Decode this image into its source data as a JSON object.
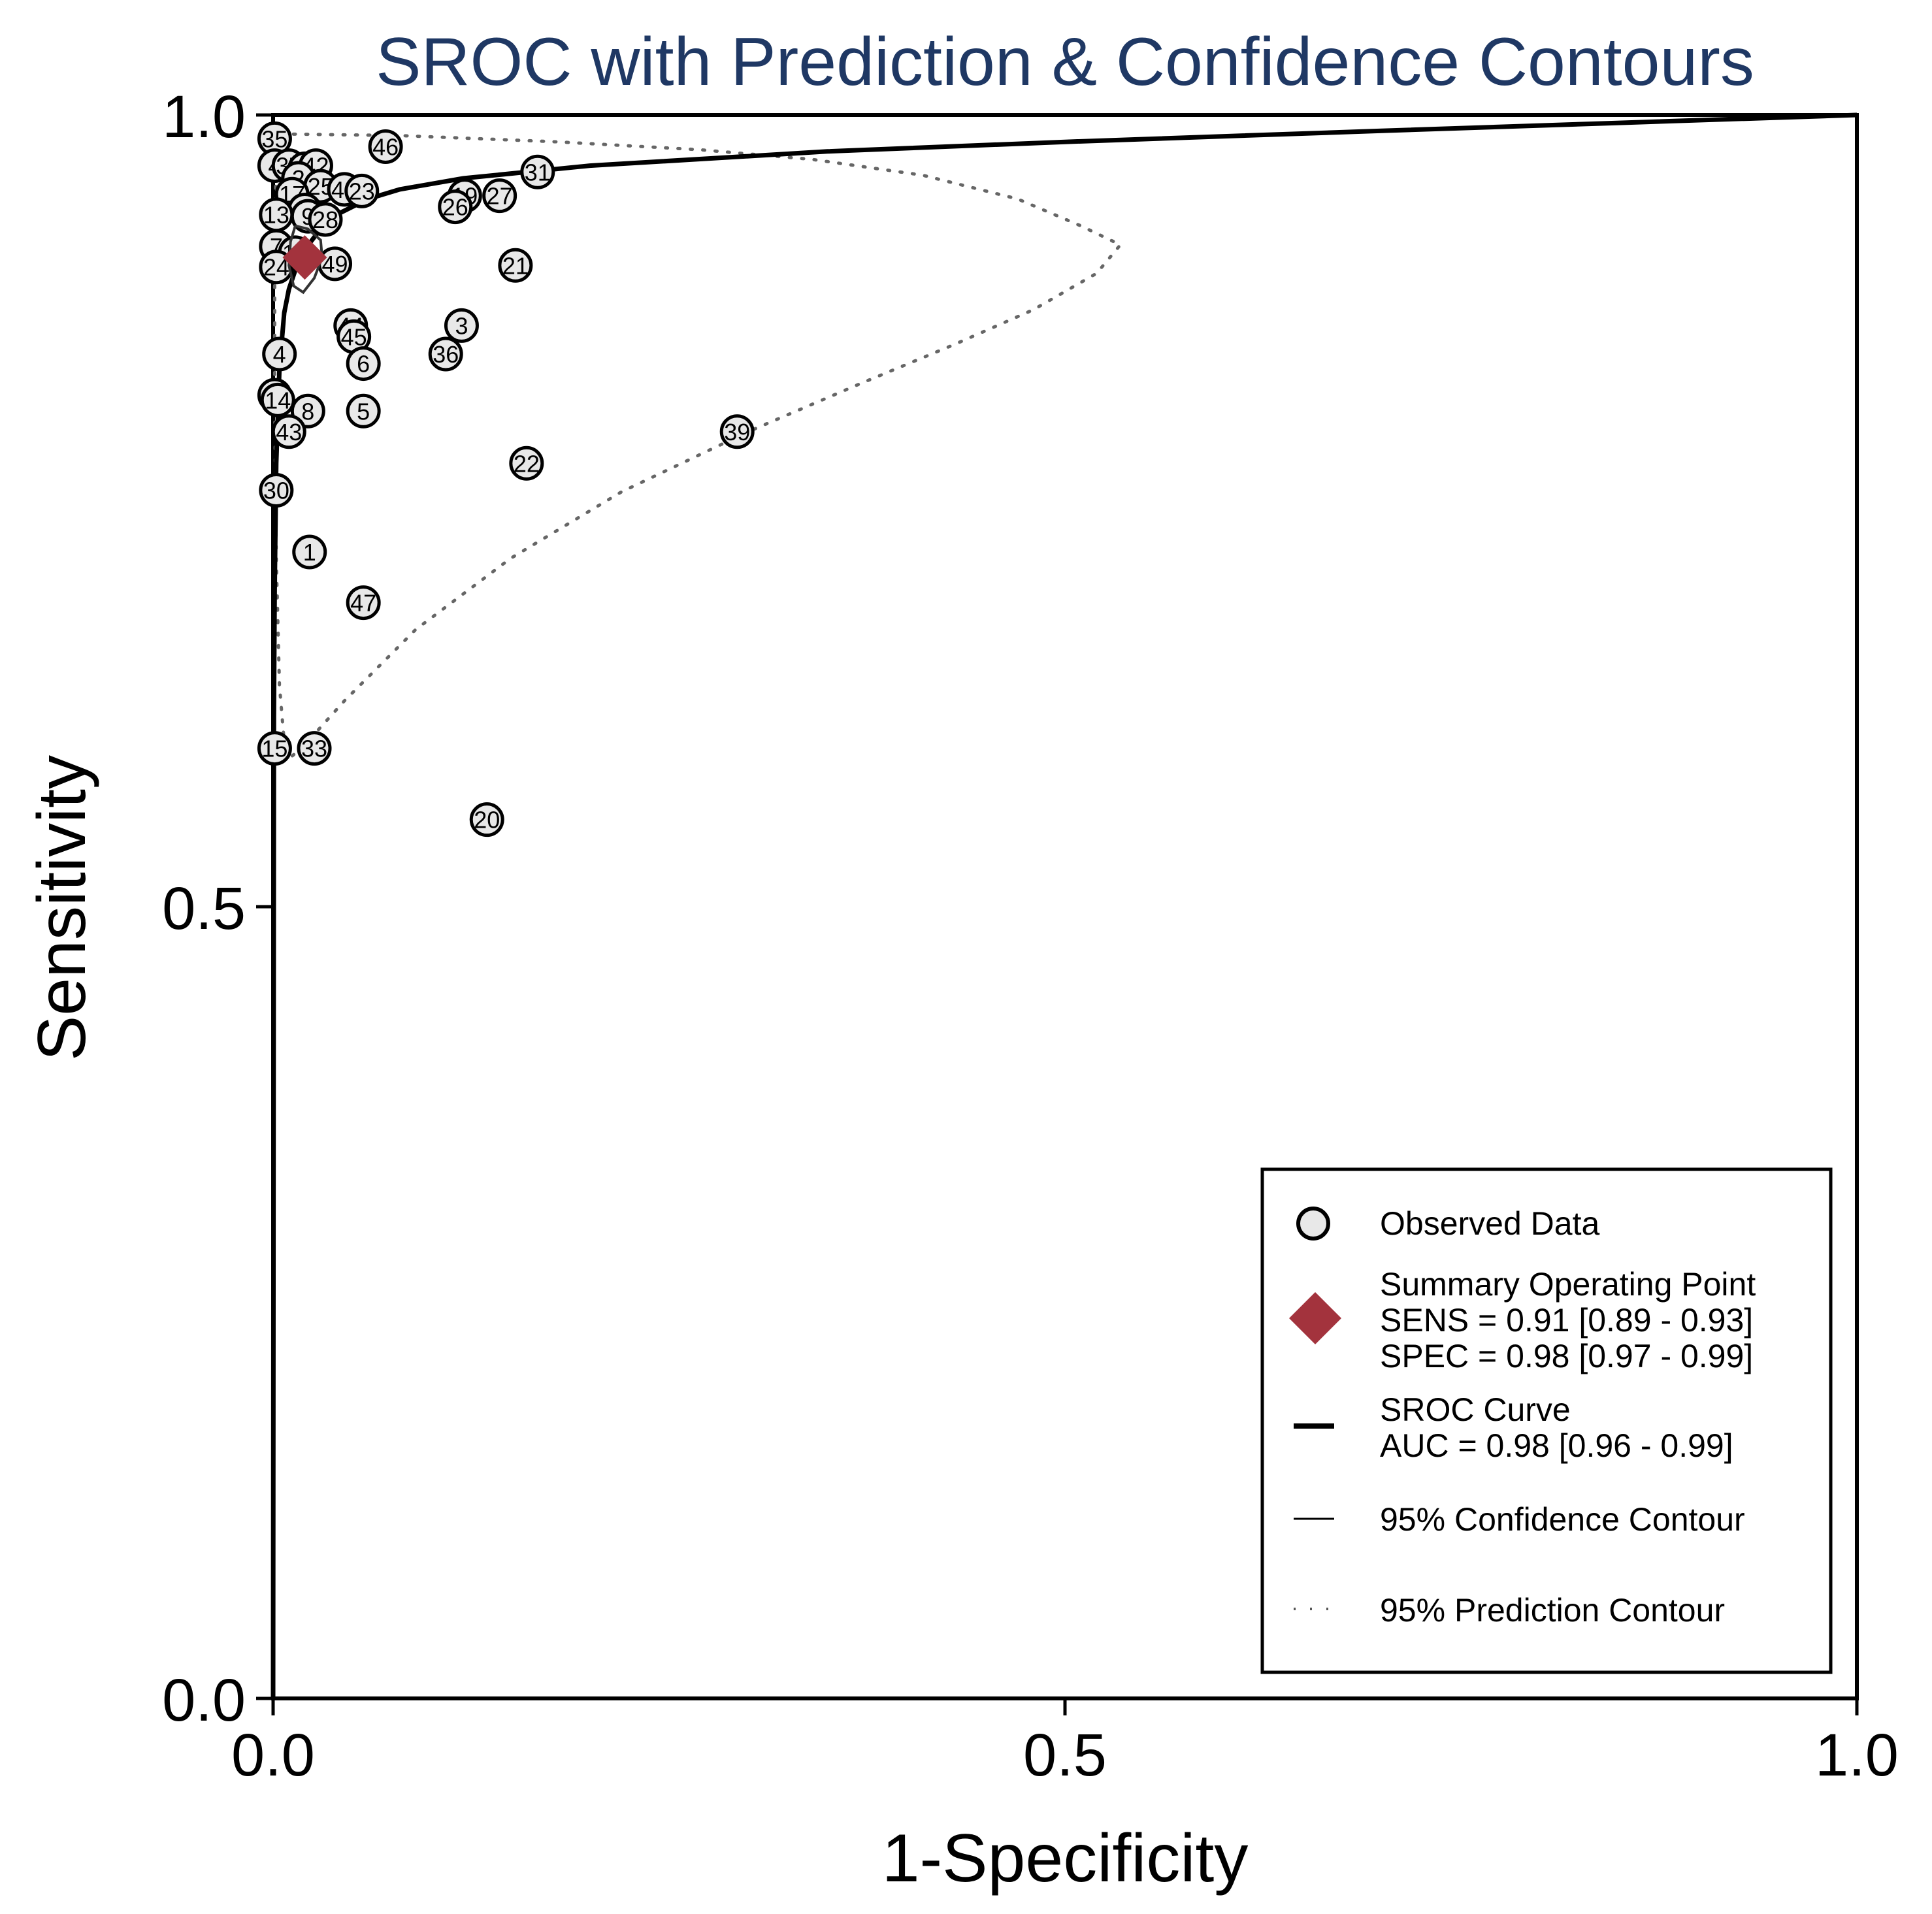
{
  "chart_data": {
    "type": "scatter",
    "title": "SROC with Prediction & Confidence Contours",
    "xlabel": "1-Specificity",
    "ylabel": "Sensitivity",
    "xlim": [
      0.0,
      1.0
    ],
    "ylim": [
      0.0,
      1.0
    ],
    "xticks": [
      "0.0",
      "0.5",
      "1.0"
    ],
    "yticks": [
      "0.0",
      "0.5",
      "1.0"
    ],
    "colors": {
      "title": "#1f3864",
      "summary": "#a3333d",
      "points_fill": "#e8e8e8"
    },
    "points": [
      {
        "id": "35",
        "x": 0.001,
        "y": 0.985
      },
      {
        "id": "46",
        "x": 0.071,
        "y": 0.98
      },
      {
        "id": "4",
        "x": 0.001,
        "y": 0.968
      },
      {
        "id": "37",
        "x": 0.01,
        "y": 0.968
      },
      {
        "id": "18",
        "x": 0.02,
        "y": 0.966
      },
      {
        "id": "42",
        "x": 0.027,
        "y": 0.968
      },
      {
        "id": "2",
        "x": 0.016,
        "y": 0.96
      },
      {
        "id": "31",
        "x": 0.167,
        "y": 0.964
      },
      {
        "id": "25",
        "x": 0.03,
        "y": 0.955
      },
      {
        "id": "17",
        "x": 0.012,
        "y": 0.95
      },
      {
        "id": "40",
        "x": 0.045,
        "y": 0.953
      },
      {
        "id": "23",
        "x": 0.056,
        "y": 0.952
      },
      {
        "id": "19",
        "x": 0.121,
        "y": 0.949
      },
      {
        "id": "27",
        "x": 0.143,
        "y": 0.949
      },
      {
        "id": "26",
        "x": 0.115,
        "y": 0.942
      },
      {
        "id": "11",
        "x": 0.02,
        "y": 0.94
      },
      {
        "id": "13",
        "x": 0.002,
        "y": 0.937
      },
      {
        "id": "9",
        "x": 0.022,
        "y": 0.936
      },
      {
        "id": "28",
        "x": 0.033,
        "y": 0.934
      },
      {
        "id": "7",
        "x": 0.002,
        "y": 0.917
      },
      {
        "id": "12",
        "x": 0.014,
        "y": 0.913
      },
      {
        "id": "49",
        "x": 0.039,
        "y": 0.906
      },
      {
        "id": "24",
        "x": 0.002,
        "y": 0.904
      },
      {
        "id": "21",
        "x": 0.153,
        "y": 0.905
      },
      {
        "id": "44",
        "x": 0.049,
        "y": 0.867
      },
      {
        "id": "3",
        "x": 0.119,
        "y": 0.867
      },
      {
        "id": "45",
        "x": 0.051,
        "y": 0.86
      },
      {
        "id": "36",
        "x": 0.109,
        "y": 0.849
      },
      {
        "id": "6",
        "x": 0.057,
        "y": 0.843
      },
      {
        "id": "4b",
        "label": "4",
        "x": 0.004,
        "y": 0.849
      },
      {
        "id": "10",
        "x": 0.001,
        "y": 0.823
      },
      {
        "id": "14",
        "x": 0.003,
        "y": 0.82
      },
      {
        "id": "8",
        "x": 0.022,
        "y": 0.813
      },
      {
        "id": "5",
        "x": 0.057,
        "y": 0.813
      },
      {
        "id": "43",
        "x": 0.01,
        "y": 0.8
      },
      {
        "id": "39",
        "x": 0.293,
        "y": 0.8
      },
      {
        "id": "22",
        "x": 0.16,
        "y": 0.78
      },
      {
        "id": "30",
        "x": 0.002,
        "y": 0.763
      },
      {
        "id": "1",
        "x": 0.023,
        "y": 0.724
      },
      {
        "id": "47",
        "x": 0.057,
        "y": 0.692
      },
      {
        "id": "15",
        "x": 0.001,
        "y": 0.6
      },
      {
        "id": "33",
        "x": 0.026,
        "y": 0.6
      },
      {
        "id": "20",
        "x": 0.135,
        "y": 0.555
      }
    ],
    "summary_point": {
      "sens": 0.91,
      "fpr": 0.02
    },
    "sroc_curve": [
      [
        0.0,
        0.0
      ],
      [
        0.0005,
        0.62
      ],
      [
        0.001,
        0.7
      ],
      [
        0.002,
        0.78
      ],
      [
        0.004,
        0.84
      ],
      [
        0.007,
        0.875
      ],
      [
        0.01,
        0.89
      ],
      [
        0.015,
        0.905
      ],
      [
        0.02,
        0.915
      ],
      [
        0.03,
        0.928
      ],
      [
        0.04,
        0.937
      ],
      [
        0.06,
        0.947
      ],
      [
        0.08,
        0.953
      ],
      [
        0.12,
        0.96
      ],
      [
        0.2,
        0.968
      ],
      [
        0.35,
        0.977
      ],
      [
        0.5,
        0.983
      ],
      [
        0.7,
        0.99
      ],
      [
        0.85,
        0.995
      ],
      [
        1.0,
        1.0
      ]
    ],
    "confidence_contour": [
      [
        0.014,
        0.93
      ],
      [
        0.022,
        0.928
      ],
      [
        0.03,
        0.921
      ],
      [
        0.031,
        0.91
      ],
      [
        0.026,
        0.897
      ],
      [
        0.019,
        0.888
      ],
      [
        0.013,
        0.892
      ],
      [
        0.01,
        0.905
      ],
      [
        0.011,
        0.92
      ],
      [
        0.014,
        0.93
      ]
    ],
    "prediction_contour": [
      [
        0.005,
        0.988
      ],
      [
        0.08,
        0.987
      ],
      [
        0.18,
        0.983
      ],
      [
        0.27,
        0.978
      ],
      [
        0.34,
        0.972
      ],
      [
        0.41,
        0.962
      ],
      [
        0.47,
        0.947
      ],
      [
        0.51,
        0.93
      ],
      [
        0.535,
        0.918
      ],
      [
        0.52,
        0.9
      ],
      [
        0.48,
        0.877
      ],
      [
        0.43,
        0.855
      ],
      [
        0.37,
        0.83
      ],
      [
        0.3,
        0.8
      ],
      [
        0.22,
        0.762
      ],
      [
        0.15,
        0.72
      ],
      [
        0.09,
        0.675
      ],
      [
        0.045,
        0.63
      ],
      [
        0.018,
        0.6
      ],
      [
        0.008,
        0.592
      ],
      [
        0.004,
        0.64
      ],
      [
        0.002,
        0.72
      ],
      [
        0.001,
        0.82
      ],
      [
        0.001,
        0.92
      ],
      [
        0.002,
        0.975
      ],
      [
        0.005,
        0.988
      ]
    ],
    "legend": {
      "position": "bottom-right",
      "observed": "Observed Data",
      "summary_title": "Summary Operating Point",
      "sens": "SENS = 0.91 [0.89 - 0.93]",
      "spec": "SPEC = 0.98 [0.97 - 0.99]",
      "sroc": "SROC Curve",
      "auc": "AUC = 0.98 [0.96 - 0.99]",
      "conf": "95% Confidence Contour",
      "pred": "95% Prediction Contour"
    }
  }
}
